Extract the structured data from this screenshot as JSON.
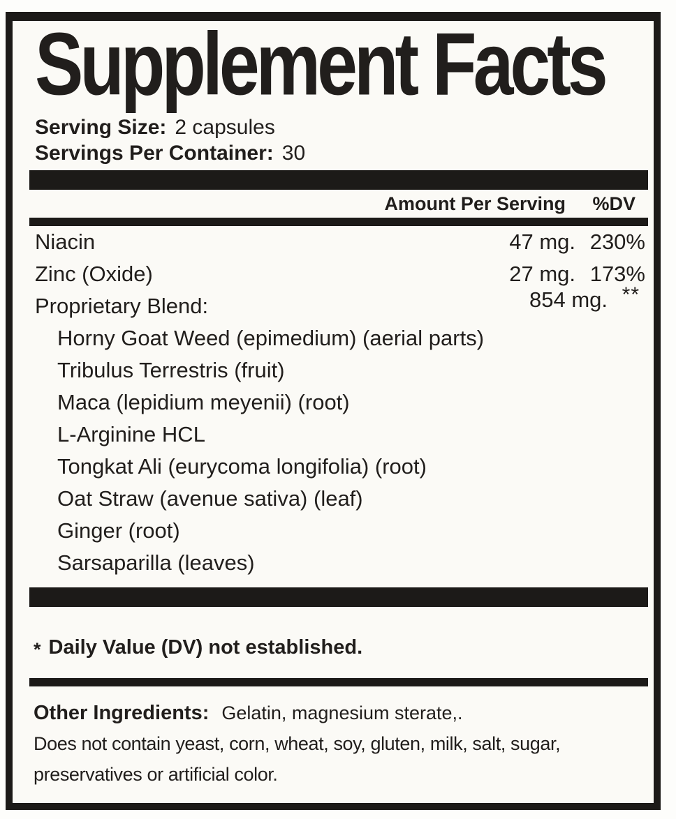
{
  "label": {
    "title": "Supplement Facts",
    "serving_size_label": "Serving Size:",
    "serving_size_value": "2 capsules",
    "servings_per_container_label": "Servings Per Container:",
    "servings_per_container_value": "30",
    "column_headers": {
      "amount": "Amount Per Serving",
      "dv": "%DV"
    },
    "nutrients": [
      {
        "name": "Niacin",
        "amount": "47 mg.",
        "dv": "230%"
      },
      {
        "name": "Zinc (Oxide)",
        "amount": "27 mg.",
        "dv": "173%"
      },
      {
        "name": "Proprietary Blend:",
        "amount": "854 mg.",
        "dv": "**"
      }
    ],
    "blend_ingredients": [
      "Horny Goat Weed (epimedium) (aerial parts)",
      "Tribulus Terrestris (fruit)",
      "Maca (lepidium meyenii) (root)",
      "L-Arginine HCL",
      "Tongkat Ali (eurycoma longifolia) (root)",
      "Oat Straw (avenue sativa) (leaf)",
      "Ginger (root)",
      "Sarsaparilla (leaves)"
    ],
    "footnote_star": "*",
    "footnote_text": "Daily Value (DV) not established.",
    "other_ingredients_label": "Other Ingredients:",
    "other_ingredients_value": "Gelatin, magnesium sterate,.",
    "disclaimer_line1": "Does not contain yeast, corn, wheat, soy, gluten, milk, salt, sugar,",
    "disclaimer_line2": "preservatives or artificial color.",
    "colors": {
      "text": "#211e1c",
      "background": "#fbfaf6",
      "rule": "#1c1a18"
    }
  }
}
